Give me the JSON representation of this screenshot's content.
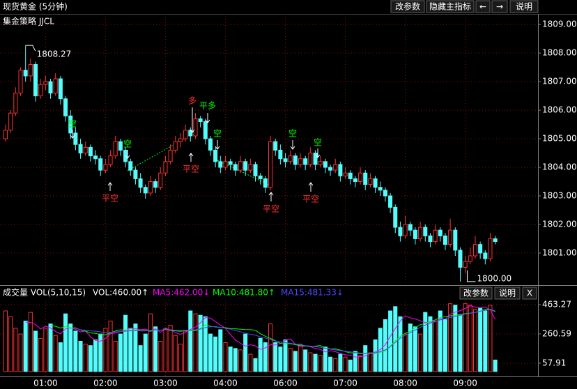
{
  "header": {
    "title": "现货黄金 (5分钟)",
    "buttons": [
      "改参数",
      "隐藏主指标",
      "←",
      "→",
      "说明"
    ]
  },
  "chart_data": [
    {
      "type": "candlestick",
      "title": "集金策略 JJCL",
      "up_color": "#ff3232",
      "down_color": "#54fcfc",
      "grid": true,
      "categories": [
        null,
        null,
        null,
        null,
        null,
        null,
        null,
        null,
        "01:00",
        null,
        null,
        null,
        null,
        null,
        null,
        null,
        null,
        null,
        null,
        null,
        "02:00",
        null,
        null,
        null,
        null,
        null,
        null,
        null,
        null,
        null,
        null,
        null,
        "03:00",
        null,
        null,
        null,
        null,
        null,
        null,
        null,
        null,
        null,
        null,
        null,
        "04:00",
        null,
        null,
        null,
        null,
        null,
        null,
        null,
        null,
        null,
        null,
        null,
        "06:00",
        null,
        null,
        null,
        null,
        null,
        null,
        null,
        null,
        null,
        null,
        null,
        "07:00",
        null,
        null,
        null,
        null,
        null,
        null,
        null,
        null,
        null,
        null,
        null,
        "08:00",
        null,
        null,
        null,
        null,
        null,
        null,
        null,
        null,
        null,
        null,
        null,
        "09:00",
        null,
        null,
        null,
        null,
        null,
        null
      ],
      "candles": [
        [
          1805.0,
          1805.5,
          1804.9,
          1805.3
        ],
        [
          1805.3,
          1806.0,
          1805.2,
          1805.9
        ],
        [
          1805.9,
          1806.8,
          1805.8,
          1806.6
        ],
        [
          1806.6,
          1807.5,
          1806.5,
          1807.4
        ],
        [
          1807.4,
          1808.27,
          1807.0,
          1807.2
        ],
        [
          1807.2,
          1807.8,
          1807.0,
          1807.6
        ],
        [
          1807.6,
          1807.7,
          1806.3,
          1806.5
        ],
        [
          1806.5,
          1807.1,
          1806.4,
          1806.9
        ],
        [
          1806.9,
          1807.2,
          1806.7,
          1807.0
        ],
        [
          1807.0,
          1807.1,
          1806.4,
          1806.6
        ],
        [
          1806.6,
          1807.3,
          1806.5,
          1807.1
        ],
        [
          1807.1,
          1807.2,
          1806.2,
          1806.4
        ],
        [
          1806.4,
          1806.5,
          1805.6,
          1805.8
        ],
        [
          1805.8,
          1806.0,
          1805.0,
          1805.2
        ],
        [
          1805.2,
          1805.4,
          1804.6,
          1804.8
        ],
        [
          1804.8,
          1805.0,
          1804.3,
          1804.5
        ],
        [
          1804.5,
          1804.9,
          1804.4,
          1804.7
        ],
        [
          1804.7,
          1804.8,
          1804.2,
          1804.4
        ],
        [
          1804.4,
          1804.6,
          1804.1,
          1804.3
        ],
        [
          1804.3,
          1804.4,
          1803.7,
          1803.9
        ],
        [
          1803.9,
          1804.3,
          1803.8,
          1804.1
        ],
        [
          1804.1,
          1804.6,
          1804.0,
          1804.4
        ],
        [
          1804.4,
          1805.1,
          1804.3,
          1804.9
        ],
        [
          1804.9,
          1805.0,
          1804.4,
          1804.6
        ],
        [
          1804.6,
          1804.7,
          1804.0,
          1804.2
        ],
        [
          1804.2,
          1804.3,
          1803.7,
          1803.9
        ],
        [
          1803.9,
          1804.0,
          1803.4,
          1803.6
        ],
        [
          1803.6,
          1803.8,
          1803.1,
          1803.3
        ],
        [
          1803.3,
          1803.4,
          1802.9,
          1803.1
        ],
        [
          1803.1,
          1803.7,
          1803.0,
          1803.5
        ],
        [
          1803.5,
          1803.6,
          1803.1,
          1803.3
        ],
        [
          1803.3,
          1804.0,
          1803.2,
          1803.8
        ],
        [
          1803.8,
          1804.4,
          1803.7,
          1804.2
        ],
        [
          1804.2,
          1804.8,
          1804.1,
          1804.6
        ],
        [
          1804.6,
          1805.1,
          1804.5,
          1804.9
        ],
        [
          1804.9,
          1805.2,
          1804.7,
          1805.0
        ],
        [
          1805.0,
          1805.5,
          1804.9,
          1805.3
        ],
        [
          1805.3,
          1805.4,
          1804.9,
          1805.1
        ],
        [
          1805.1,
          1805.9,
          1805.0,
          1805.7
        ],
        [
          1805.7,
          1805.8,
          1805.4,
          1805.6
        ],
        [
          1805.6,
          1805.7,
          1804.8,
          1805.0
        ],
        [
          1805.0,
          1805.1,
          1804.4,
          1804.6
        ],
        [
          1804.6,
          1804.7,
          1804.0,
          1804.2
        ],
        [
          1804.2,
          1804.4,
          1803.8,
          1804.0
        ],
        [
          1804.0,
          1804.4,
          1803.9,
          1804.2
        ],
        [
          1804.2,
          1804.3,
          1803.9,
          1804.1
        ],
        [
          1804.1,
          1804.2,
          1803.7,
          1803.9
        ],
        [
          1803.9,
          1804.4,
          1803.8,
          1804.2
        ],
        [
          1804.2,
          1804.3,
          1803.7,
          1803.9
        ],
        [
          1803.9,
          1804.3,
          1803.8,
          1804.1
        ],
        [
          1804.1,
          1804.2,
          1803.5,
          1803.7
        ],
        [
          1803.7,
          1803.8,
          1803.4,
          1803.6
        ],
        [
          1803.6,
          1803.7,
          1803.1,
          1803.3
        ],
        [
          1803.3,
          1805.1,
          1803.2,
          1804.9
        ],
        [
          1804.9,
          1805.0,
          1804.4,
          1804.6
        ],
        [
          1804.6,
          1804.8,
          1804.1,
          1804.3
        ],
        [
          1804.3,
          1804.5,
          1804.0,
          1804.2
        ],
        [
          1804.2,
          1804.6,
          1804.1,
          1804.4
        ],
        [
          1804.4,
          1804.5,
          1803.9,
          1804.1
        ],
        [
          1804.1,
          1804.5,
          1804.0,
          1804.3
        ],
        [
          1804.3,
          1804.4,
          1803.9,
          1804.1
        ],
        [
          1804.1,
          1804.7,
          1804.0,
          1804.5
        ],
        [
          1804.5,
          1804.6,
          1803.9,
          1804.1
        ],
        [
          1804.1,
          1804.4,
          1804.0,
          1804.2
        ],
        [
          1804.2,
          1804.3,
          1803.8,
          1804.0
        ],
        [
          1804.0,
          1804.1,
          1803.7,
          1803.9
        ],
        [
          1803.9,
          1804.3,
          1803.8,
          1804.1
        ],
        [
          1804.1,
          1804.2,
          1803.5,
          1803.7
        ],
        [
          1803.7,
          1804.0,
          1803.6,
          1803.8
        ],
        [
          1803.8,
          1803.9,
          1803.4,
          1803.6
        ],
        [
          1803.6,
          1803.7,
          1803.3,
          1803.5
        ],
        [
          1803.5,
          1804.0,
          1803.4,
          1803.8
        ],
        [
          1803.8,
          1803.9,
          1803.2,
          1803.4
        ],
        [
          1803.4,
          1803.8,
          1803.3,
          1803.6
        ],
        [
          1803.6,
          1803.7,
          1803.1,
          1803.3
        ],
        [
          1803.3,
          1803.5,
          1803.0,
          1803.2
        ],
        [
          1803.2,
          1803.3,
          1802.8,
          1803.0
        ],
        [
          1803.0,
          1803.1,
          1802.4,
          1802.6
        ],
        [
          1802.6,
          1802.7,
          1801.7,
          1801.9
        ],
        [
          1801.9,
          1802.1,
          1801.4,
          1801.6
        ],
        [
          1801.6,
          1802.3,
          1801.5,
          1802.0
        ],
        [
          1802.0,
          1802.1,
          1801.6,
          1801.8
        ],
        [
          1801.8,
          1801.9,
          1801.3,
          1801.5
        ],
        [
          1801.5,
          1802.1,
          1801.4,
          1801.9
        ],
        [
          1801.9,
          1802.0,
          1801.4,
          1801.6
        ],
        [
          1801.6,
          1801.7,
          1801.2,
          1801.4
        ],
        [
          1801.4,
          1802.0,
          1801.3,
          1801.8
        ],
        [
          1801.8,
          1801.9,
          1801.4,
          1801.6
        ],
        [
          1801.6,
          1801.7,
          1801.1,
          1801.3
        ],
        [
          1801.3,
          1802.2,
          1801.2,
          1801.8
        ],
        [
          1801.8,
          1801.9,
          1800.9,
          1801.1
        ],
        [
          1801.1,
          1801.2,
          1800.0,
          1800.5
        ],
        [
          1800.5,
          1800.9,
          1800.3,
          1800.7
        ],
        [
          1800.7,
          1801.2,
          1800.6,
          1800.9
        ],
        [
          1800.9,
          1801.6,
          1800.8,
          1801.3
        ],
        [
          1801.3,
          1801.4,
          1800.8,
          1801.0
        ],
        [
          1801.0,
          1801.1,
          1800.6,
          1800.8
        ],
        [
          1800.8,
          1801.7,
          1800.7,
          1801.5
        ],
        [
          1801.5,
          1801.6,
          1801.3,
          1801.4
        ]
      ],
      "ylim": [
        1799.9,
        1809.37
      ],
      "yticks": [
        {
          "value": 1801,
          "label": "1801.00"
        },
        {
          "value": 1802,
          "label": "1802.00"
        },
        {
          "value": 1803,
          "label": "1803.00"
        },
        {
          "value": 1804,
          "label": "1804.00"
        },
        {
          "value": 1805,
          "label": "1805.00"
        },
        {
          "value": 1806,
          "label": "1806.00"
        },
        {
          "value": 1807,
          "label": "1807.00"
        },
        {
          "value": 1808,
          "label": "1808.00"
        },
        {
          "value": 1809,
          "label": "1809.00"
        }
      ],
      "max_marker": {
        "value": 1808.27,
        "label": "1808.27"
      },
      "min_marker": {
        "value": 1800,
        "label": "1800.00"
      },
      "signals": [
        "空",
        "平空",
        "空",
        "多",
        "平多",
        "平空",
        "空",
        "平空",
        "空",
        "空",
        "平空"
      ]
    },
    {
      "type": "volume",
      "title": "成交量 VOL(5,10,15)",
      "current_label": "VOL:460.00↑",
      "buttons": [
        "改参数",
        "说明",
        "X"
      ],
      "values": [
        420,
        380,
        300,
        260,
        350,
        410,
        280,
        230,
        300,
        330,
        250,
        200,
        400,
        330,
        280,
        210,
        190,
        180,
        220,
        260,
        300,
        350,
        210,
        260,
        390,
        300,
        330,
        180,
        260,
        400,
        310,
        210,
        300,
        320,
        250,
        190,
        280,
        420,
        400,
        390,
        380,
        260,
        240,
        290,
        200,
        170,
        160,
        150,
        260,
        120,
        90,
        230,
        200,
        330,
        200,
        170,
        220,
        160,
        140,
        190,
        150,
        130,
        120,
        110,
        170,
        100,
        90,
        120,
        100,
        80,
        140,
        110,
        180,
        130,
        220,
        300,
        360,
        420,
        450,
        380,
        260,
        330,
        310,
        260,
        410,
        380,
        350,
        420,
        360,
        470,
        460,
        390,
        470,
        460,
        430,
        440,
        420,
        460,
        80
      ],
      "ylim": [
        -34,
        507
      ],
      "yticks": [
        57.91,
        260.59,
        463.27
      ],
      "series": [
        {
          "name": "MA5:462.00↓",
          "color": "#ff00ff",
          "values": [
            null,
            null,
            null,
            null,
            342,
            340,
            326,
            294,
            314,
            302,
            278,
            262,
            296,
            302,
            292,
            274,
            282,
            240,
            216,
            210,
            230,
            262,
            268,
            276,
            284,
            300,
            298,
            290,
            294,
            282,
            296,
            272,
            296,
            290,
            270,
            258,
            272,
            292,
            308,
            338,
            374,
            370,
            346,
            322,
            300,
            256,
            218,
            196,
            176,
            186,
            178,
            154,
            164,
            186,
            184,
            194,
            216,
            226,
            190,
            170,
            178,
            172,
            160,
            154,
            136,
            144,
            138,
            126,
            116,
            114,
            100,
            104,
            108,
            126,
            136,
            152,
            186,
            244,
            298,
            350,
            386,
            372,
            364,
            352,
            340,
            342,
            344,
            366,
            364,
            398,
            412,
            422,
            438,
            456,
            446,
            442,
            446,
            428,
            360
          ]
        },
        {
          "name": "MA10:481.80↑",
          "color": "#00ff00",
          "values": [
            null,
            null,
            null,
            null,
            null,
            null,
            null,
            null,
            null,
            321,
            313,
            301,
            311,
            302,
            303,
            288,
            280,
            268,
            265,
            256,
            254,
            268,
            282,
            289,
            288,
            287,
            290,
            283,
            285,
            279,
            290,
            286,
            293,
            284,
            282,
            279,
            284,
            282,
            283,
            298,
            322,
            314,
            309,
            306,
            304,
            297,
            296,
            293,
            290,
            290,
            286,
            262,
            244,
            230,
            213,
            195,
            192,
            193,
            186,
            181,
            178,
            173,
            176,
            180,
            163,
            157,
            157,
            149,
            138,
            129,
            127,
            124,
            123,
            126,
            125,
            133,
            143,
            176,
            212,
            243,
            265,
            278,
            305,
            325,
            333,
            347,
            358,
            374,
            380,
            386,
            390,
            396,
            401,
            405,
            410,
            419,
            430,
            432,
            415
          ]
        },
        {
          "name": "MA15:481.33↓",
          "color": "#4a4aff",
          "values": [
            null,
            null,
            null,
            null,
            null,
            null,
            null,
            null,
            null,
            null,
            null,
            null,
            null,
            null,
            300,
            290,
            285,
            282,
            280,
            275,
            270,
            271,
            275,
            277,
            280,
            282,
            283,
            281,
            282,
            285,
            288,
            287,
            290,
            289,
            286,
            284,
            286,
            287,
            290,
            294,
            305,
            310,
            312,
            306,
            300,
            293,
            285,
            276,
            267,
            258,
            252,
            240,
            232,
            222,
            210,
            205,
            200,
            196,
            190,
            186,
            180,
            176,
            172,
            168,
            160,
            155,
            150,
            145,
            140,
            136,
            132,
            128,
            126,
            128,
            130,
            138,
            150,
            172,
            202,
            232,
            252,
            270,
            288,
            306,
            322,
            334,
            348,
            358,
            366,
            374,
            382,
            390,
            398,
            404,
            410,
            418,
            424,
            430,
            420
          ]
        }
      ]
    }
  ]
}
